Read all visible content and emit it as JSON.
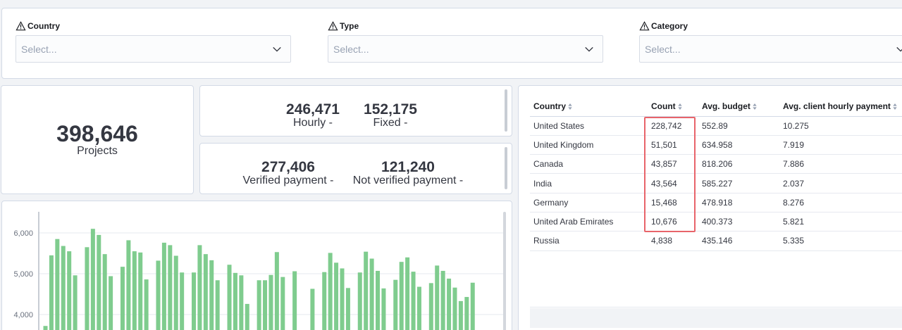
{
  "filters": [
    {
      "label": "Country",
      "placeholder": "Select..."
    },
    {
      "label": "Type",
      "placeholder": "Select..."
    },
    {
      "label": "Category",
      "placeholder": "Select..."
    }
  ],
  "metrics": {
    "projects": {
      "value": "398,646",
      "label": "Projects"
    },
    "hourly": {
      "value": "246,471",
      "label": "Hourly -"
    },
    "fixed": {
      "value": "152,175",
      "label": "Fixed -"
    },
    "verified": {
      "value": "277,406",
      "label": "Verified payment -"
    },
    "not_verified": {
      "value": "121,240",
      "label": "Not verified payment -"
    }
  },
  "table": {
    "headers": [
      "Country",
      "Count",
      "Avg. budget",
      "Avg. client hourly payment"
    ],
    "rows": [
      [
        "United States",
        "228,742",
        "552.89",
        "10.275"
      ],
      [
        "United Kingdom",
        "51,501",
        "634.958",
        "7.919"
      ],
      [
        "Canada",
        "43,857",
        "818.206",
        "7.886"
      ],
      [
        "India",
        "43,564",
        "585.227",
        "2.037"
      ],
      [
        "Germany",
        "15,468",
        "478.918",
        "8.276"
      ],
      [
        "United Arab Emirates",
        "10,676",
        "400.373",
        "5.821"
      ],
      [
        "Russia",
        "4,838",
        "435.146",
        "5.335"
      ]
    ]
  },
  "colors": {
    "bar": "#7fcc8e",
    "highlight": "#e8646a"
  },
  "chart_data": {
    "type": "bar",
    "y_ticks": [
      "6,000",
      "5,000",
      "4,000"
    ],
    "ylim": [
      3620,
      6500
    ],
    "grid": true,
    "values": [
      3720,
      5450,
      5850,
      5680,
      5550,
      4960,
      null,
      5650,
      6100,
      5950,
      5480,
      4940,
      null,
      5170,
      5820,
      5550,
      5520,
      4860,
      null,
      5320,
      5760,
      5700,
      5440,
      5030,
      null,
      5030,
      5700,
      5480,
      5330,
      4840,
      null,
      5220,
      5020,
      4960,
      4260,
      null,
      4840,
      4840,
      4970,
      5530,
      4920,
      null,
      5060,
      null,
      null,
      4630,
      null,
      5040,
      5510,
      5270,
      5130,
      4650,
      null,
      5030,
      5540,
      5370,
      5070,
      4640,
      null,
      4850,
      5290,
      5400,
      5050,
      4680,
      null,
      4770,
      5200,
      5070,
      4880,
      4660,
      4330,
      4430,
      4780
    ]
  }
}
